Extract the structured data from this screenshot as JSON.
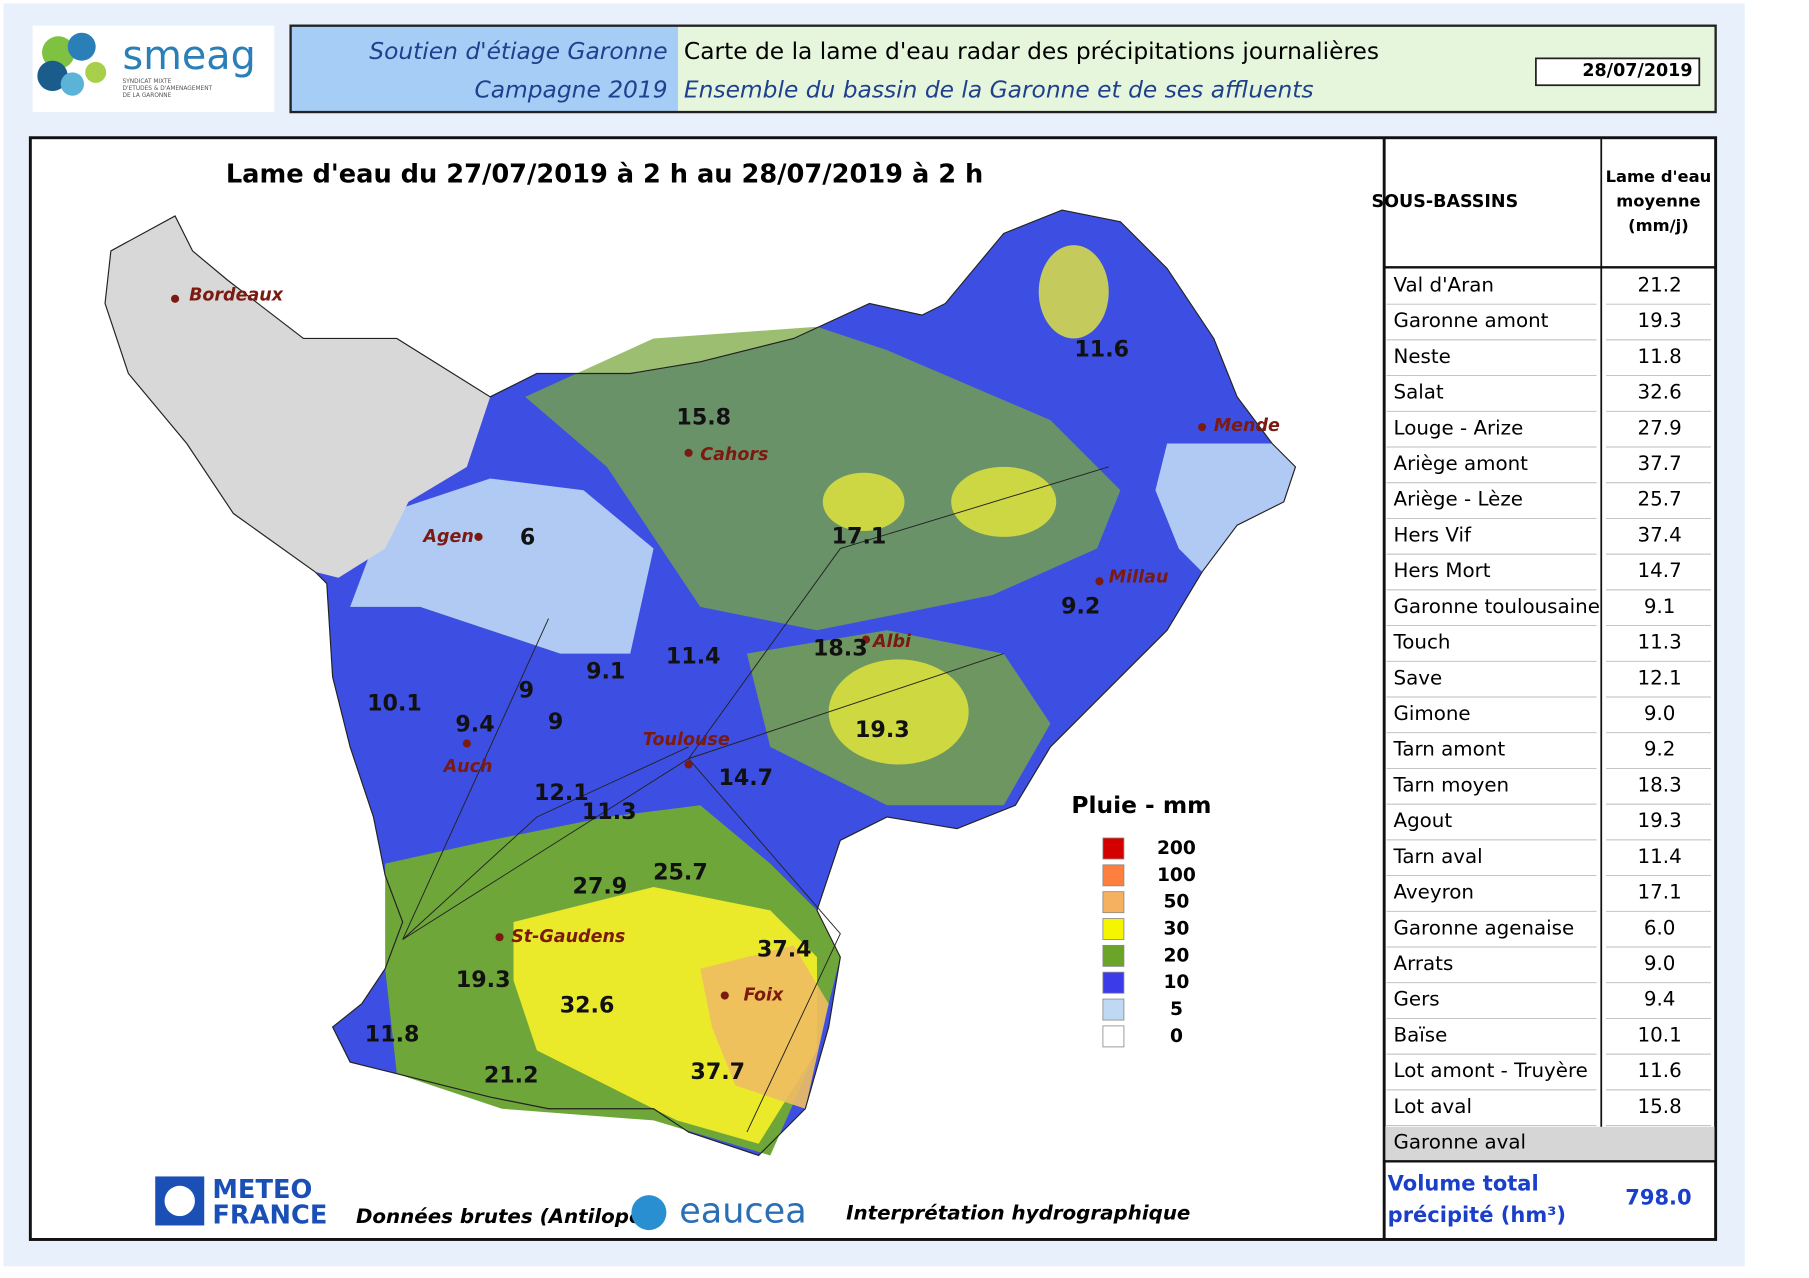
{
  "header": {
    "logo_name": "smeag",
    "logo_subtitle": [
      "SYNDICAT MIXTE",
      "D'ETUDES & D'AMENAGEMENT",
      "DE LA GARONNE"
    ],
    "left_title": "Soutien d'étiage Garonne",
    "left_subtitle": "Campagne 2019",
    "right_title": "Carte de la lame d'eau radar des précipitations journalières",
    "right_subtitle": "Ensemble du bassin de la Garonne et de ses affluents",
    "date": "28/07/2019"
  },
  "map": {
    "title": "Lame d'eau du 27/07/2019 à 2 h au 28/07/2019 à 2 h",
    "cities": [
      "Bordeaux",
      "Cahors",
      "Mende",
      "Agen",
      "Millau",
      "Albi",
      "Toulouse",
      "Auch",
      "St-Gaudens",
      "Foix"
    ],
    "labels": [
      "11.6",
      "15.8",
      "6",
      "17.1",
      "9.2",
      "18.3",
      "11.4",
      "9.1",
      "9",
      "10.1",
      "9.4",
      "9",
      "19.3",
      "14.7",
      "12.1",
      "11.3",
      "27.9",
      "25.7",
      "37.4",
      "19.3",
      "32.6",
      "11.8",
      "21.2",
      "37.7"
    ],
    "legend": {
      "title": "Pluie - mm",
      "items": [
        {
          "value": 200,
          "color": "#d40000"
        },
        {
          "value": 100,
          "color": "#ff7f3f"
        },
        {
          "value": 50,
          "color": "#f5b060"
        },
        {
          "value": 30,
          "color": "#f5f500"
        },
        {
          "value": 20,
          "color": "#6aa52a"
        },
        {
          "value": 10,
          "color": "#3b3bea"
        },
        {
          "value": 5,
          "color": "#bfd9f5"
        },
        {
          "value": 0,
          "color": "#ffffff"
        }
      ]
    }
  },
  "table": {
    "header": [
      "SOUS-BASSINS",
      [
        "Lame d'eau",
        "moyenne",
        "(mm/j)"
      ]
    ],
    "rows": [
      [
        "Val d'Aran",
        "21.2"
      ],
      [
        "Garonne amont",
        "19.3"
      ],
      [
        "Neste",
        "11.8"
      ],
      [
        "Salat",
        "32.6"
      ],
      [
        "Louge - Arize",
        "27.9"
      ],
      [
        "Ariège amont",
        "37.7"
      ],
      [
        "Ariège - Lèze",
        "25.7"
      ],
      [
        "Hers Vif",
        "37.4"
      ],
      [
        "Hers Mort",
        "14.7"
      ],
      [
        "Garonne toulousaine",
        "9.1"
      ],
      [
        "Touch",
        "11.3"
      ],
      [
        "Save",
        "12.1"
      ],
      [
        "Gimone",
        "9.0"
      ],
      [
        "Tarn amont",
        "9.2"
      ],
      [
        "Tarn moyen",
        "18.3"
      ],
      [
        "Agout",
        "19.3"
      ],
      [
        "Tarn aval",
        "11.4"
      ],
      [
        "Aveyron",
        "17.1"
      ],
      [
        "Garonne agenaise",
        "6.0"
      ],
      [
        "Arrats",
        "9.0"
      ],
      [
        "Gers",
        "9.4"
      ],
      [
        "Baïse",
        "10.1"
      ],
      [
        "Lot amont - Truyère",
        "11.6"
      ],
      [
        "Lot aval",
        "15.8"
      ],
      [
        "Garonne aval"
      ]
    ],
    "total": {
      "label": [
        "Volume total",
        "précipité (hm³)"
      ],
      "value": "798.0"
    }
  },
  "footer": {
    "meteo": [
      "METEO",
      "FRANCE"
    ],
    "source": "Données brutes (Antilope)",
    "eaucea": "eaucea",
    "interpretation": "Interprétation hydrographique"
  }
}
